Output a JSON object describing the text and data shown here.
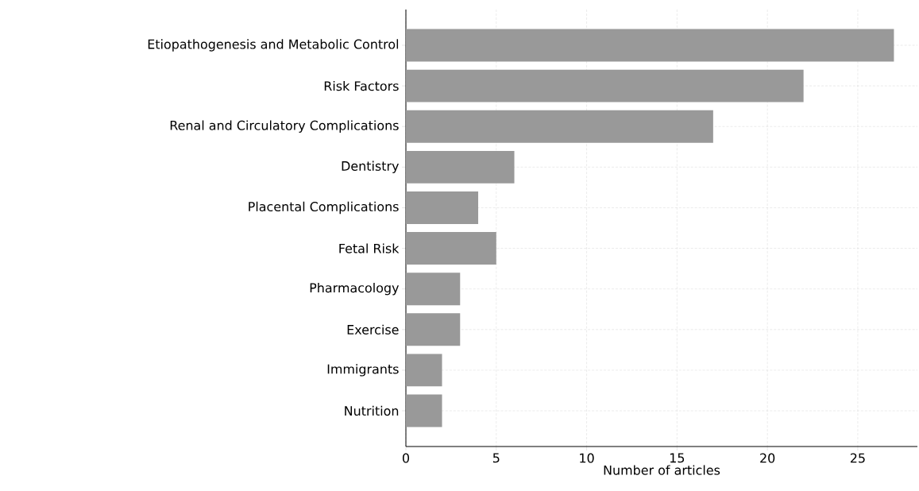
{
  "chart_data": {
    "type": "bar",
    "orientation": "horizontal",
    "xlabel": "Number of articles",
    "categories": [
      "Etiopathogenesis and Metabolic Control",
      "Risk Factors",
      "Renal and Circulatory Complications",
      "Dentistry",
      "Placental Complications",
      "Fetal Risk",
      "Pharmacology",
      "Exercise",
      "Immigrants",
      "Nutrition"
    ],
    "values": [
      27,
      22,
      17,
      6,
      4,
      5,
      3,
      3,
      2,
      2
    ],
    "color": "#999999",
    "xlim": [
      0,
      28.3
    ],
    "xticks": [
      0,
      5,
      10,
      15,
      20,
      25
    ],
    "grid": true
  }
}
